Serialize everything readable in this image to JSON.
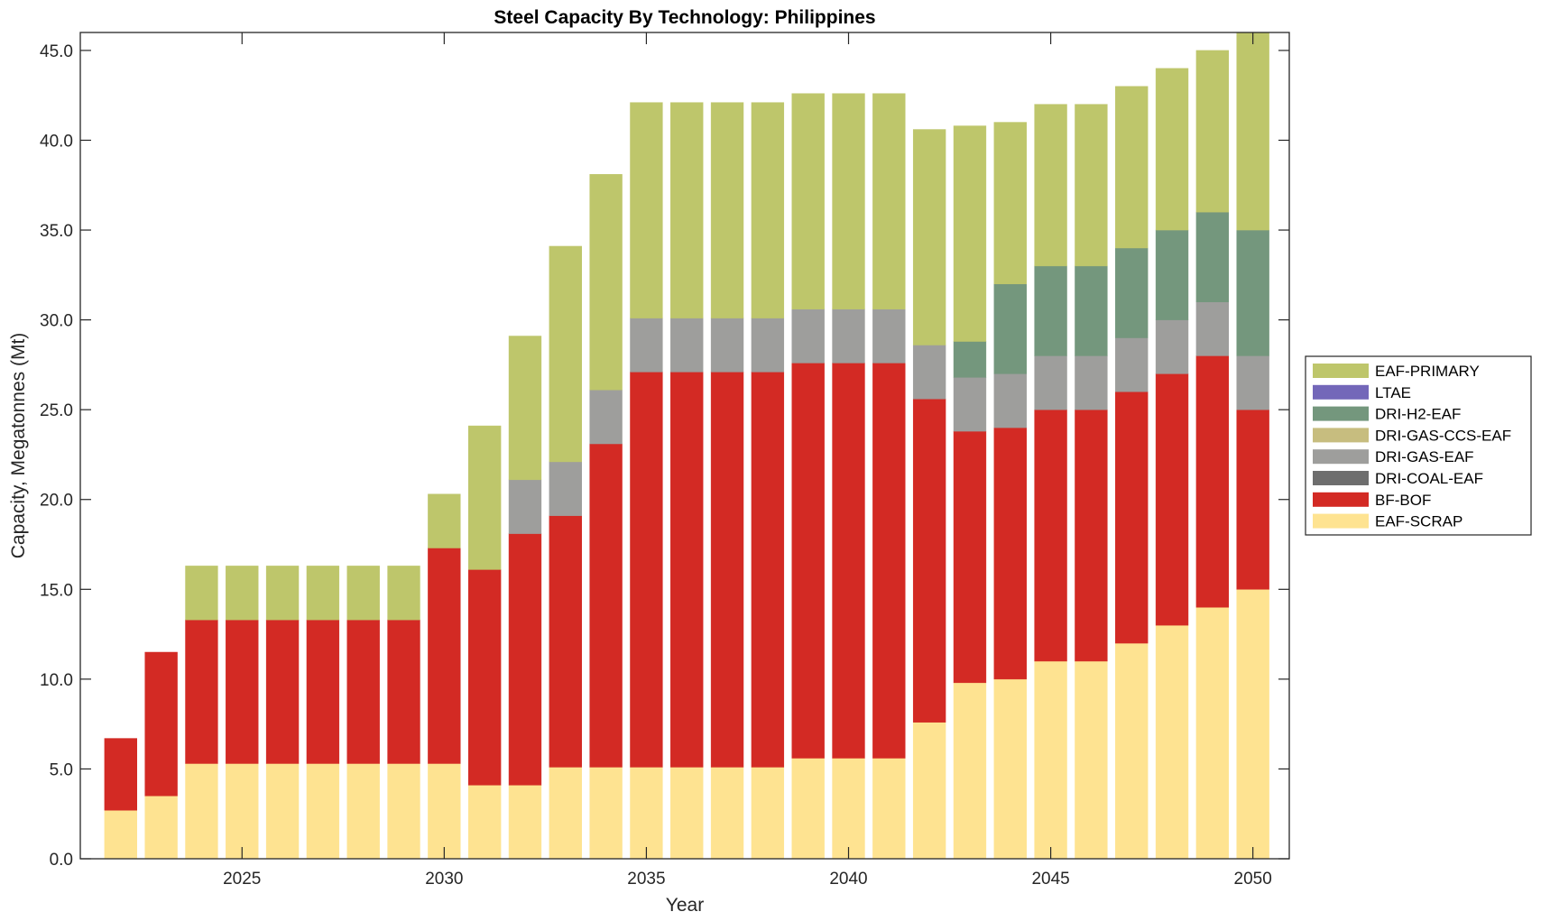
{
  "chart_data": {
    "type": "bar",
    "stacked": true,
    "title": "Steel Capacity By Technology: Philippines",
    "xlabel": "Year",
    "ylabel": "Capacity, Megatonnes (Mt)",
    "ylim": [
      0,
      46
    ],
    "xlim": [
      2021,
      2050.9
    ],
    "grid": false,
    "legend_position": "right",
    "y_ticks": [
      "0.0",
      "5.0",
      "10.0",
      "15.0",
      "20.0",
      "25.0",
      "30.0",
      "35.0",
      "40.0",
      "45.0"
    ],
    "y_tick_values": [
      0,
      5,
      10,
      15,
      20,
      25,
      30,
      35,
      40,
      45
    ],
    "x_ticks": [
      "2025",
      "2030",
      "2035",
      "2040",
      "2045",
      "2050"
    ],
    "x_tick_values": [
      2025,
      2030,
      2035,
      2040,
      2045,
      2050
    ],
    "categories": [
      2022,
      2023,
      2024,
      2025,
      2026,
      2027,
      2028,
      2029,
      2030,
      2031,
      2032,
      2033,
      2034,
      2035,
      2036,
      2037,
      2038,
      2039,
      2040,
      2041,
      2042,
      2043,
      2044,
      2045,
      2046,
      2047,
      2048,
      2049,
      2050
    ],
    "series": [
      {
        "name": "EAF-SCRAP",
        "color": "#fee391",
        "values": [
          2.7,
          3.5,
          5.3,
          5.3,
          5.3,
          5.3,
          5.3,
          5.3,
          5.3,
          4.1,
          4.1,
          5.1,
          5.1,
          5.1,
          5.1,
          5.1,
          5.1,
          5.6,
          5.6,
          5.6,
          7.6,
          9.8,
          10.0,
          11.0,
          11.0,
          12.0,
          13.0,
          14.0,
          15.0
        ]
      },
      {
        "name": "BF-BOF",
        "color": "#d32a24",
        "values": [
          4.0,
          8.0,
          8.0,
          8.0,
          8.0,
          8.0,
          8.0,
          8.0,
          12.0,
          12.0,
          14.0,
          14.0,
          18.0,
          22.0,
          22.0,
          22.0,
          22.0,
          22.0,
          22.0,
          22.0,
          18.0,
          14.0,
          14.0,
          14.0,
          14.0,
          14.0,
          14.0,
          14.0,
          10.0
        ]
      },
      {
        "name": "DRI-COAL-EAF",
        "color": "#6e6e6e",
        "values": [
          0,
          0,
          0,
          0,
          0,
          0,
          0,
          0,
          0,
          0,
          0,
          0,
          0,
          0,
          0,
          0,
          0,
          0,
          0,
          0,
          0,
          0,
          0,
          0,
          0,
          0,
          0,
          0,
          0
        ]
      },
      {
        "name": "DRI-GAS-EAF",
        "color": "#9e9e9c",
        "values": [
          0,
          0,
          0,
          0,
          0,
          0,
          0,
          0,
          0,
          0,
          3.0,
          3.0,
          3.0,
          3.0,
          3.0,
          3.0,
          3.0,
          3.0,
          3.0,
          3.0,
          3.0,
          3.0,
          3.0,
          3.0,
          3.0,
          3.0,
          3.0,
          3.0,
          3.0
        ]
      },
      {
        "name": "DRI-GAS-CCS-EAF",
        "color": "#c7bd7f",
        "values": [
          0,
          0,
          0,
          0,
          0,
          0,
          0,
          0,
          0,
          0,
          0,
          0,
          0,
          0,
          0,
          0,
          0,
          0,
          0,
          0,
          0,
          0,
          0,
          0,
          0,
          0,
          0,
          0,
          0
        ]
      },
      {
        "name": "DRI-H2-EAF",
        "color": "#74977d",
        "values": [
          0,
          0,
          0,
          0,
          0,
          0,
          0,
          0,
          0,
          0,
          0,
          0,
          0,
          0,
          0,
          0,
          0,
          0,
          0,
          0,
          0,
          2.0,
          5.0,
          5.0,
          5.0,
          5.0,
          5.0,
          5.0,
          7.0
        ]
      },
      {
        "name": "LTAE",
        "color": "#7367b9",
        "values": [
          0,
          0,
          0,
          0,
          0,
          0,
          0,
          0,
          0,
          0,
          0,
          0,
          0,
          0,
          0,
          0,
          0,
          0,
          0,
          0,
          0,
          0,
          0,
          0,
          0,
          0,
          0,
          0,
          0
        ]
      },
      {
        "name": "EAF-PRIMARY",
        "color": "#bec66b",
        "values": [
          0,
          0,
          3.0,
          3.0,
          3.0,
          3.0,
          3.0,
          3.0,
          3.0,
          8.0,
          8.0,
          12.0,
          12.0,
          12.0,
          12.0,
          12.0,
          12.0,
          12.0,
          12.0,
          12.0,
          12.0,
          12.0,
          9.0,
          9.0,
          9.0,
          9.0,
          9.0,
          9.0,
          11.0
        ]
      }
    ],
    "legend_order": [
      "EAF-PRIMARY",
      "LTAE",
      "DRI-H2-EAF",
      "DRI-GAS-CCS-EAF",
      "DRI-GAS-EAF",
      "DRI-COAL-EAF",
      "BF-BOF",
      "EAF-SCRAP"
    ]
  }
}
